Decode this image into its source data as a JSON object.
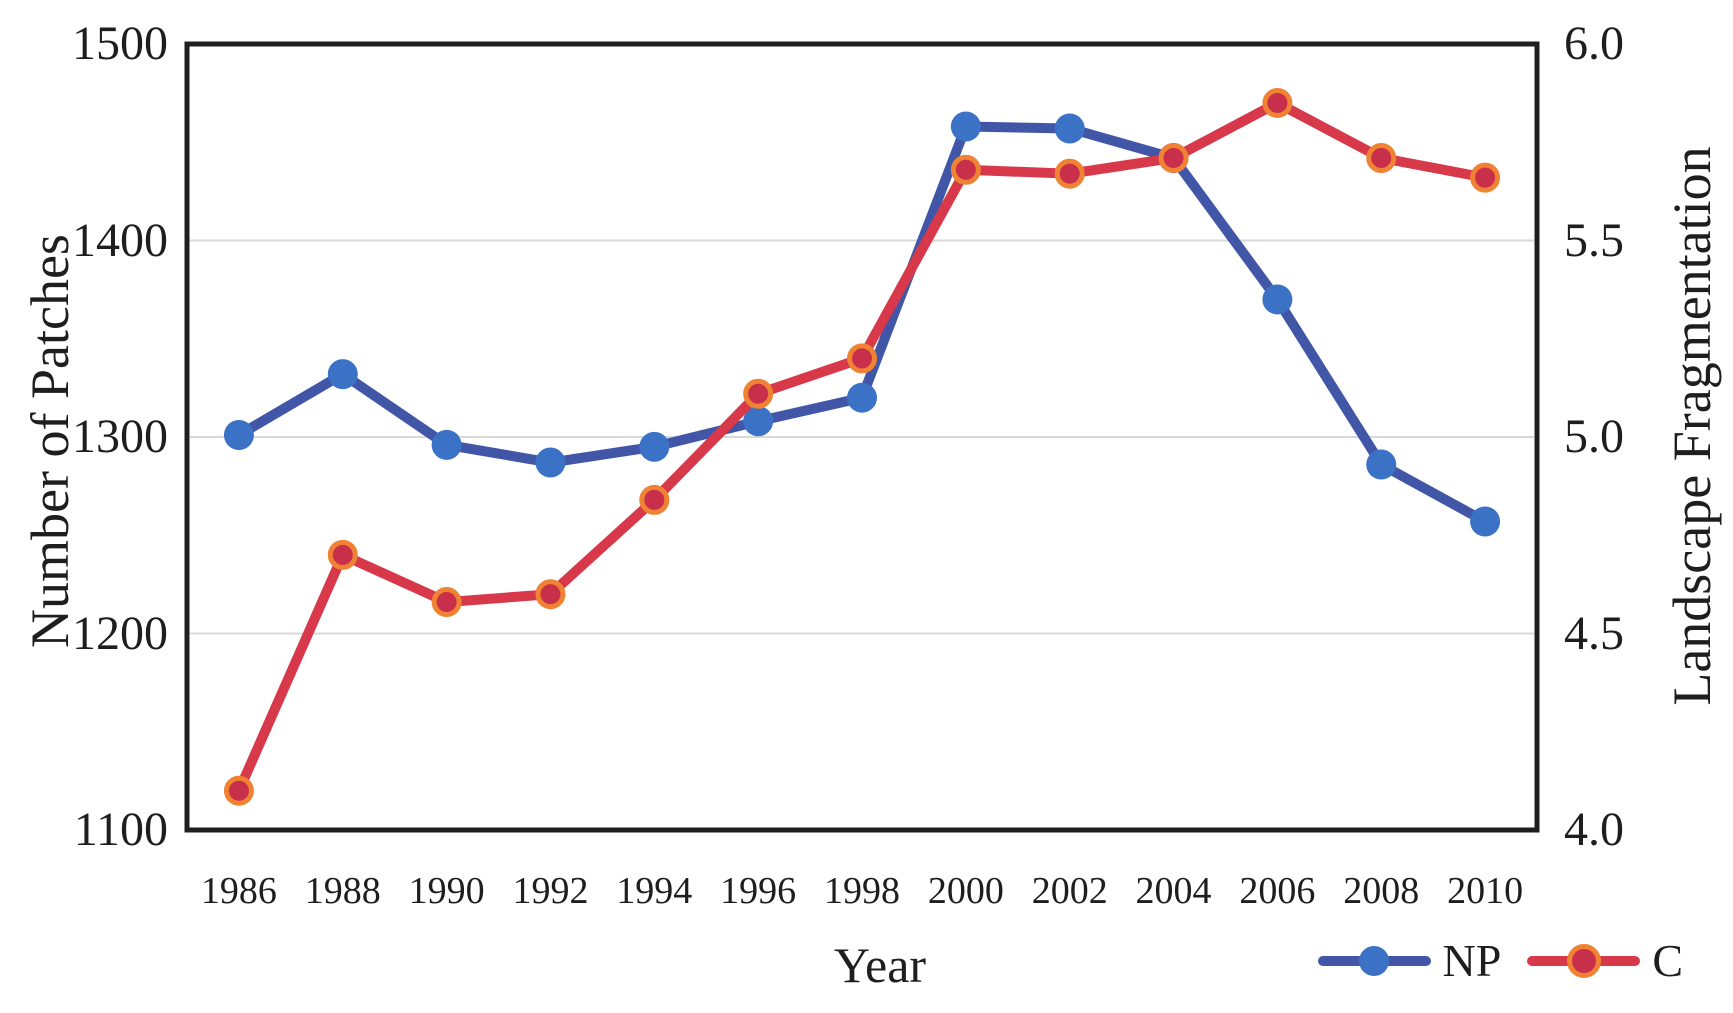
{
  "chart_data": {
    "type": "line",
    "title": "",
    "x": {
      "label": "Year",
      "categories": [
        "1986",
        "1988",
        "1990",
        "1992",
        "1994",
        "1996",
        "1998",
        "2000",
        "2002",
        "2004",
        "2006",
        "2008",
        "2010"
      ]
    },
    "left_axis": {
      "label": "Number of Patches",
      "min": 1100,
      "max": 1500,
      "ticks": [
        1500,
        1400,
        1300,
        1200,
        1100
      ],
      "gridline_values": [
        1400,
        1300,
        1200
      ]
    },
    "right_axis": {
      "label": "Landscape Fragmentation",
      "min": 4.0,
      "max": 6.0,
      "ticks": [
        "6.0",
        "5.5",
        "5.0",
        "4.5",
        "4.0"
      ]
    },
    "series": [
      {
        "name": "NP",
        "axis": "left",
        "values": [
          1301,
          1332,
          1296,
          1287,
          1295,
          1308,
          1320,
          1458,
          1457,
          1442,
          1370,
          1286,
          1257
        ],
        "line_color": "#4156A6",
        "marker_color": "#3B72C6",
        "marker_ring": null
      },
      {
        "name": "C",
        "axis": "right",
        "values": [
          4.1,
          4.7,
          4.58,
          4.6,
          4.84,
          5.11,
          5.2,
          5.68,
          5.67,
          5.71,
          5.85,
          5.71,
          5.66
        ],
        "line_color": "#D7384A",
        "marker_color": "#C72F4A",
        "marker_ring": "#F08233"
      }
    ],
    "legend": {
      "position": "bottom-right",
      "items": [
        "NP",
        "C"
      ]
    },
    "grid": true,
    "grid_color": "#D8D8D8",
    "border_color": "#1F1F1F",
    "text_color": "#1E1E1E",
    "background": "#FFFFFF"
  }
}
